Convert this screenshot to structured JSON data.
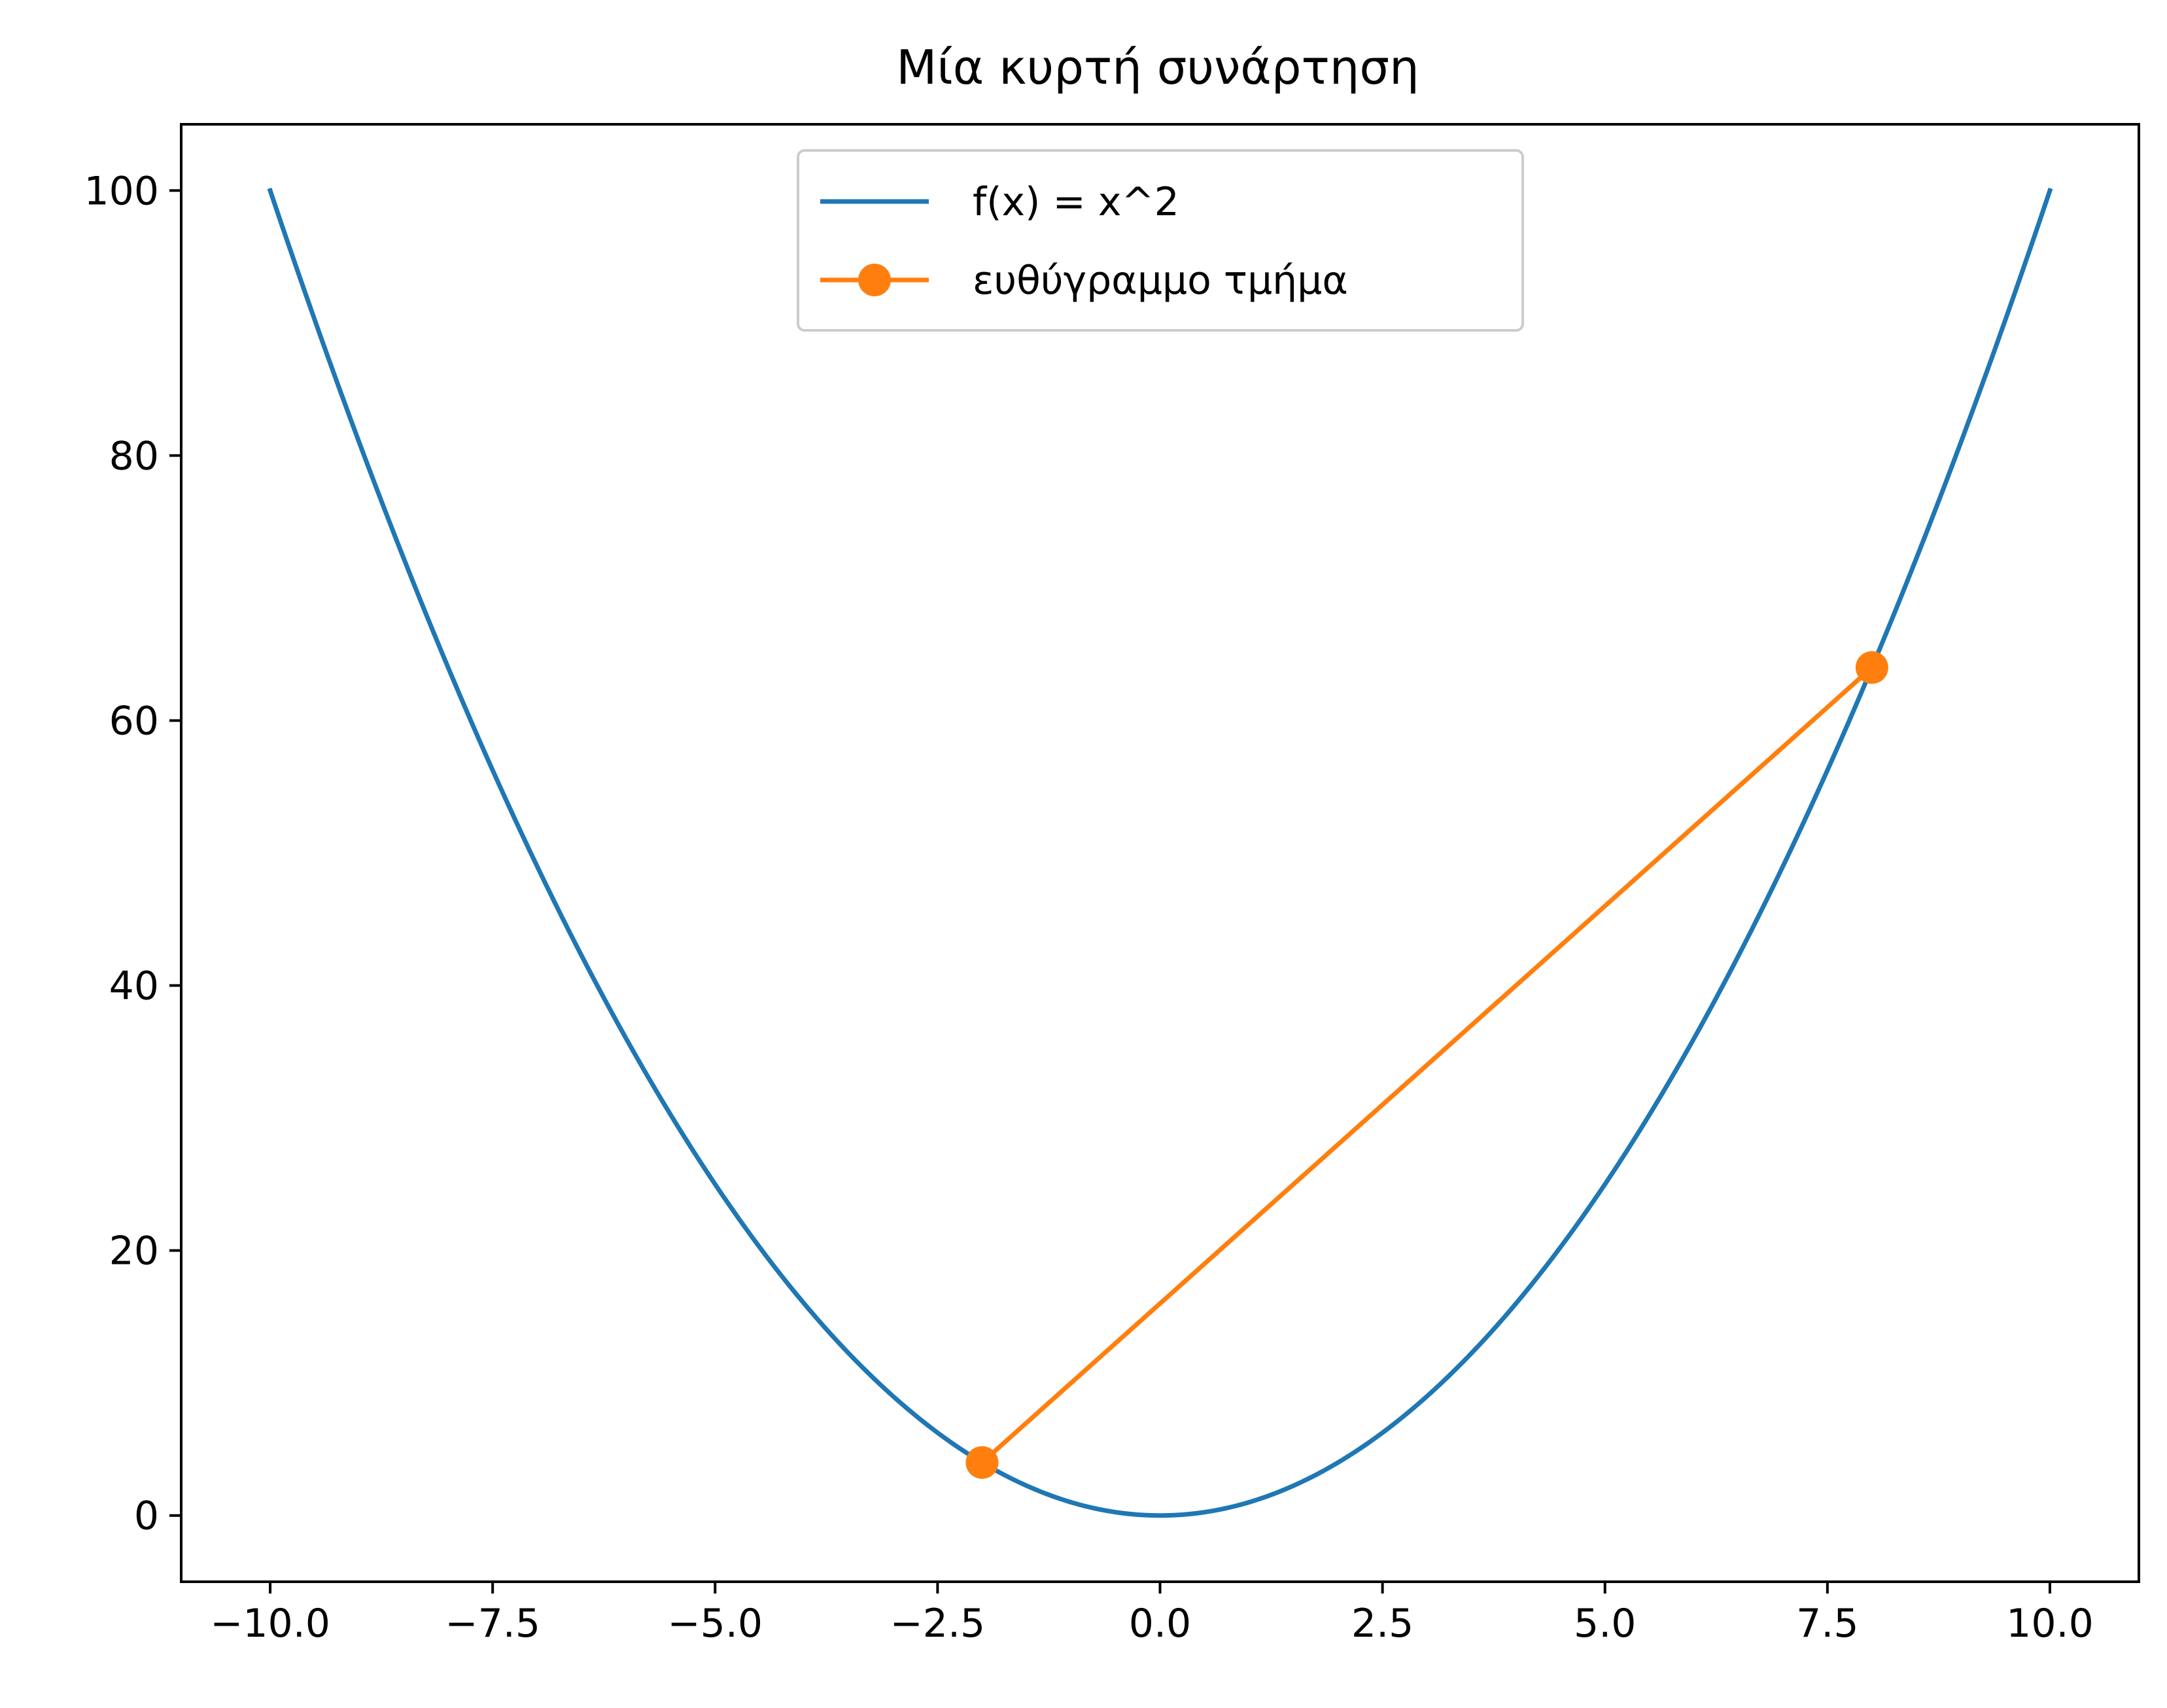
{
  "chart_data": {
    "type": "line",
    "title": "Μία κυρτή συνάρτηση",
    "xlabel": "",
    "ylabel": "",
    "xlim": [
      -11,
      11
    ],
    "ylim": [
      -5,
      105
    ],
    "xticks": [
      -10.0,
      -7.5,
      -5.0,
      -2.5,
      0.0,
      2.5,
      5.0,
      7.5,
      10.0
    ],
    "xtick_labels": [
      "−10.0",
      "−7.5",
      "−5.0",
      "−2.5",
      "0.0",
      "2.5",
      "5.0",
      "7.5",
      "10.0"
    ],
    "yticks": [
      0,
      20,
      40,
      60,
      80,
      100
    ],
    "ytick_labels": [
      "0",
      "20",
      "40",
      "60",
      "80",
      "100"
    ],
    "grid": false,
    "legend_position": "top-center",
    "series": [
      {
        "name": "f(x) = x^2",
        "color": "#1f77b4",
        "function": "x^2",
        "x_range": [
          -10,
          10
        ],
        "marker": "none"
      },
      {
        "name": "ευθύγραμμο τμήμα",
        "color": "#ff7f0e",
        "marker": "circle",
        "points": [
          {
            "x": -2,
            "y": 4
          },
          {
            "x": 8,
            "y": 64
          }
        ]
      }
    ]
  }
}
